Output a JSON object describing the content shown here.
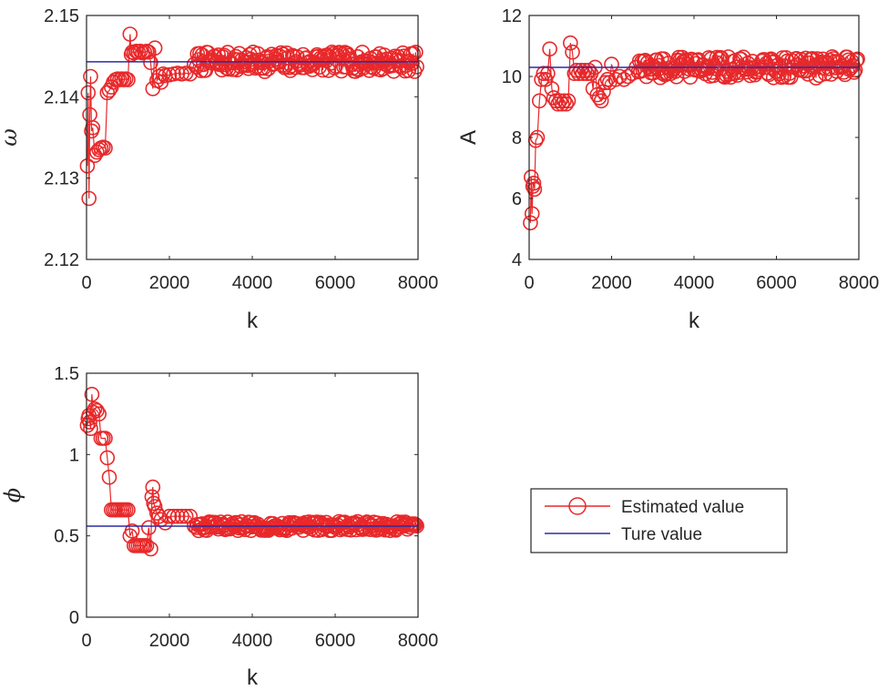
{
  "colors": {
    "estimated": "#e8282a",
    "true_line": "#2b2ba6",
    "axes": "#262626",
    "background": "#ffffff"
  },
  "legend": {
    "estimated_label": "Estimated value",
    "true_label": "Ture value"
  },
  "chart_data": [
    {
      "id": "omega",
      "type": "line",
      "title": "",
      "xlabel": "k",
      "ylabel": "ω",
      "xlim": [
        0,
        8000
      ],
      "ylim": [
        2.12,
        2.15
      ],
      "xticks": [
        0,
        2000,
        4000,
        6000,
        8000
      ],
      "xtick_labels": [
        "0",
        "2000",
        "4000",
        "6000",
        "8000"
      ],
      "yticks": [
        2.12,
        2.13,
        2.14,
        2.15
      ],
      "ytick_labels": [
        "2.12",
        "2.13",
        "2.14",
        "2.15"
      ],
      "true_value": 2.1443,
      "band": 0.0012,
      "series": [
        {
          "name": "Estimated value",
          "x": [
            20,
            40,
            60,
            80,
            100,
            120,
            150,
            200,
            250,
            300,
            350,
            400,
            450,
            500,
            550,
            600,
            650,
            700,
            750,
            800,
            850,
            900,
            950,
            1000,
            1050,
            1080,
            1100,
            1150,
            1200,
            1250,
            1300,
            1350,
            1400,
            1450,
            1500,
            1550,
            1600,
            1650,
            1700,
            1750,
            1800,
            1850,
            1900,
            2000,
            2100,
            2200,
            2300,
            2400,
            2500,
            2600
          ],
          "y": [
            2.1315,
            2.1405,
            2.1275,
            2.1378,
            2.1425,
            2.1358,
            2.1362,
            2.1328,
            2.1332,
            2.1335,
            2.1337,
            2.1338,
            2.1337,
            2.1405,
            2.1408,
            2.1412,
            2.1418,
            2.1421,
            2.1422,
            2.1421,
            2.1422,
            2.1421,
            2.1422,
            2.1421,
            2.1477,
            2.1452,
            2.1455,
            2.1454,
            2.1456,
            2.1455,
            2.1456,
            2.1454,
            2.1455,
            2.1456,
            2.1455,
            2.1442,
            2.141,
            2.146,
            2.142,
            2.1425,
            2.1418,
            2.1428,
            2.1426,
            2.1427,
            2.1428,
            2.1429,
            2.1428,
            2.1429,
            2.1428,
            2.144
          ]
        }
      ]
    },
    {
      "id": "amplitude",
      "type": "line",
      "title": "",
      "xlabel": "k",
      "ylabel": "A",
      "xlim": [
        0,
        8000
      ],
      "ylim": [
        4,
        12
      ],
      "xticks": [
        0,
        2000,
        4000,
        6000,
        8000
      ],
      "xtick_labels": [
        "0",
        "2000",
        "4000",
        "6000",
        "8000"
      ],
      "yticks": [
        4,
        6,
        8,
        10,
        12
      ],
      "ytick_labels": [
        "4",
        "6",
        "8",
        "10",
        "12"
      ],
      "true_value": 10.3,
      "band": 0.35,
      "series": [
        {
          "name": "Estimated value",
          "x": [
            30,
            50,
            70,
            90,
            110,
            130,
            160,
            200,
            250,
            300,
            350,
            400,
            450,
            500,
            550,
            600,
            650,
            700,
            750,
            800,
            850,
            900,
            950,
            1000,
            1050,
            1100,
            1150,
            1200,
            1250,
            1300,
            1350,
            1400,
            1450,
            1500,
            1550,
            1600,
            1650,
            1700,
            1750,
            1800,
            1850,
            1900,
            1950,
            2000,
            2100,
            2200,
            2300,
            2400,
            2500,
            2600
          ],
          "y": [
            5.2,
            6.7,
            5.5,
            6.4,
            6.5,
            6.3,
            7.9,
            8.0,
            9.2,
            9.9,
            10.1,
            9.9,
            10.1,
            10.9,
            9.6,
            9.3,
            9.2,
            9.1,
            9.2,
            9.1,
            9.2,
            9.1,
            9.2,
            11.1,
            10.8,
            10.1,
            10.2,
            10.1,
            10.2,
            10.1,
            10.2,
            10.1,
            10.2,
            10.1,
            9.6,
            10.3,
            9.4,
            9.3,
            9.2,
            9.5,
            9.8,
            9.9,
            9.8,
            10.4,
            9.9,
            10.0,
            9.9,
            10.0,
            10.1,
            10.3
          ]
        }
      ]
    },
    {
      "id": "phi",
      "type": "line",
      "title": "",
      "xlabel": "k",
      "ylabel": "ϕ",
      "xlim": [
        0,
        8000
      ],
      "ylim": [
        0,
        1.5
      ],
      "xticks": [
        0,
        2000,
        4000,
        6000,
        8000
      ],
      "xtick_labels": [
        "0",
        "2000",
        "4000",
        "6000",
        "8000"
      ],
      "yticks": [
        0,
        0.5,
        1,
        1.5
      ],
      "ytick_labels": [
        "0",
        "0.5",
        "1",
        "1.5"
      ],
      "true_value": 0.56,
      "band": 0.028,
      "series": [
        {
          "name": "Estimated value",
          "x": [
            20,
            40,
            60,
            80,
            100,
            130,
            160,
            200,
            250,
            300,
            350,
            400,
            450,
            500,
            550,
            600,
            650,
            700,
            750,
            800,
            850,
            900,
            950,
            1000,
            1050,
            1100,
            1150,
            1200,
            1250,
            1300,
            1350,
            1400,
            1450,
            1500,
            1550,
            1580,
            1600,
            1620,
            1650,
            1700,
            1750,
            1800,
            1900,
            2000,
            2100,
            2200,
            2300,
            2400,
            2500,
            2600
          ],
          "y": [
            1.18,
            1.22,
            1.24,
            1.2,
            1.16,
            1.37,
            1.26,
            1.28,
            1.27,
            1.25,
            1.1,
            1.1,
            1.1,
            0.98,
            0.86,
            0.66,
            0.66,
            0.66,
            0.66,
            0.66,
            0.66,
            0.66,
            0.66,
            0.66,
            0.5,
            0.53,
            0.44,
            0.44,
            0.44,
            0.44,
            0.44,
            0.44,
            0.44,
            0.55,
            0.42,
            0.74,
            0.8,
            0.7,
            0.68,
            0.64,
            0.62,
            0.6,
            0.58,
            0.62,
            0.62,
            0.62,
            0.62,
            0.62,
            0.62,
            0.56
          ]
        }
      ]
    }
  ]
}
